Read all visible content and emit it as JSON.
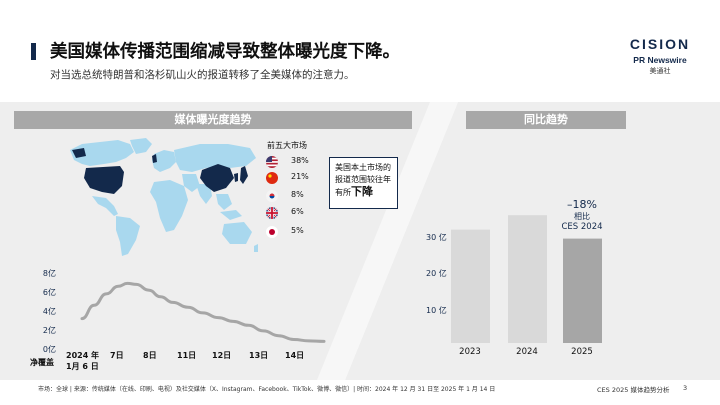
{
  "header": {
    "title": "美国媒体传播范围缩减导致整体曝光度下降。",
    "subtitle": "对当选总统特朗普和洛杉矶山火的报道转移了全美媒体的注意力。"
  },
  "logo": {
    "brand": "CISION",
    "sub": "PR Newswire",
    "cn": "美通社"
  },
  "colors": {
    "navy": "#13294b",
    "map_light": "#a9d8ee",
    "bar_grey": "#d9d9d9",
    "bar_dark": "#a6a6a6"
  },
  "left_panel": {
    "header": "媒体曝光度趋势",
    "legend": {
      "title": "前五大市场",
      "rows": [
        {
          "flag": "us-flag-icon",
          "pct": "38%"
        },
        {
          "flag": "cn-flag-icon",
          "pct": "21%"
        },
        {
          "flag": "kr-flag-icon",
          "pct": "8%"
        },
        {
          "flag": "uk-flag-icon",
          "pct": "6%"
        },
        {
          "flag": "jp-flag-icon",
          "pct": "5%"
        }
      ]
    },
    "callout": {
      "line1": "美国本土市场的",
      "line2": "报道范围较往年",
      "line3_prefix": "有所",
      "line3_strong": "下降"
    }
  },
  "right_panel": {
    "header": "同比趋势",
    "annotation": {
      "big": "–18%",
      "l2": "相比",
      "l3": "CES 2024"
    }
  },
  "chart_data": [
    {
      "type": "line",
      "ylabel": "净覆盖",
      "y_ticks": [
        "8亿",
        "6亿",
        "4亿",
        "2亿",
        "0亿"
      ],
      "ylim": [
        0,
        8
      ],
      "x_labels": [
        {
          "l1": "2024 年",
          "l2": "1月 6 日"
        },
        {
          "l1": "7日"
        },
        {
          "l1": "8日"
        },
        {
          "l1": "11日"
        },
        {
          "l1": "12日"
        },
        {
          "l1": "13日"
        },
        {
          "l1": "14日"
        }
      ],
      "xlim": [
        0,
        8.2
      ],
      "x": [
        0.0,
        0.4,
        0.8,
        1.2,
        1.5,
        1.8,
        2.2,
        2.6,
        3.0,
        3.5,
        4.0,
        4.5,
        5.0,
        5.5,
        6.0,
        6.5,
        7.0,
        7.5,
        8.0
      ],
      "values": [
        3.2,
        4.6,
        5.8,
        6.6,
        6.9,
        6.8,
        6.2,
        5.5,
        4.9,
        4.4,
        3.8,
        3.3,
        2.9,
        2.5,
        1.9,
        1.4,
        1.0,
        0.85,
        0.8
      ]
    },
    {
      "type": "bar",
      "categories": [
        "2023",
        "2024",
        "2025"
      ],
      "values": [
        31.5,
        35.5,
        29.0
      ],
      "y_ticks": [
        "30 亿",
        "20 亿",
        "10 亿"
      ],
      "y_tick_values": [
        30,
        20,
        10
      ],
      "ylim": [
        0,
        40
      ]
    }
  ],
  "footer": {
    "source": "市场：全球 | 来源：传统媒体（在线、印刷、电视）及社交媒体（X、Instagram、Facebook、TikTok、微博、微信）| 时间：2024 年 12 月 31 日至 2025 年 1 月 14 日",
    "right": "CES 2025 媒体趋势分析",
    "page": "3"
  }
}
